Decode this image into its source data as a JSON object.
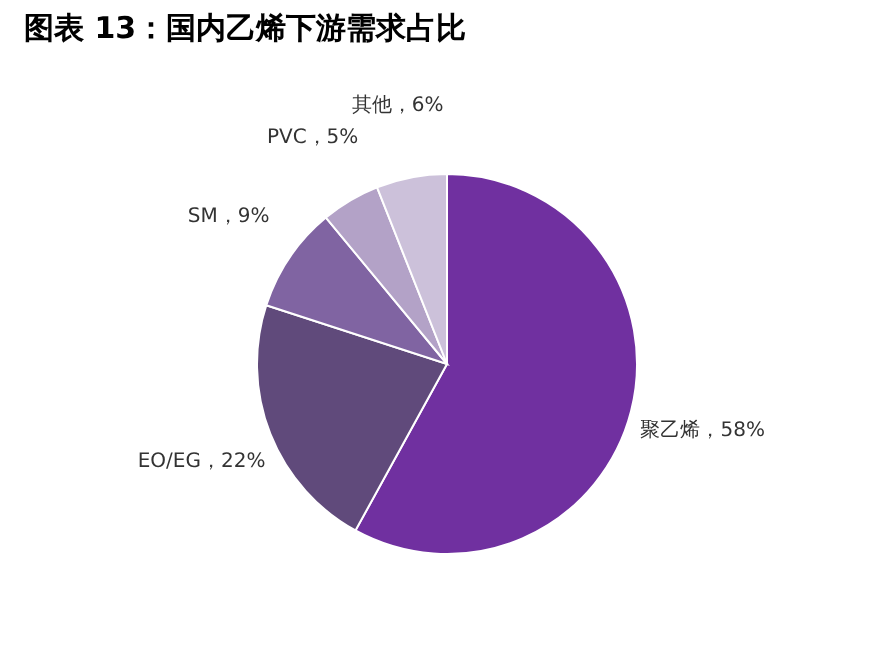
{
  "chart_data": {
    "type": "pie",
    "title": "图表 13：国内乙烯下游需求占比",
    "categories": [
      "聚乙烯",
      "EO/EG",
      "SM",
      "PVC",
      "其他"
    ],
    "values": [
      58,
      22,
      9,
      5,
      6
    ],
    "value_labels": [
      "58%",
      "22%",
      "9%",
      "5%",
      "6%"
    ],
    "colors": [
      "#7030a0",
      "#604a7b",
      "#8064a2",
      "#b3a2c7",
      "#ccc1da"
    ],
    "legend": false
  }
}
